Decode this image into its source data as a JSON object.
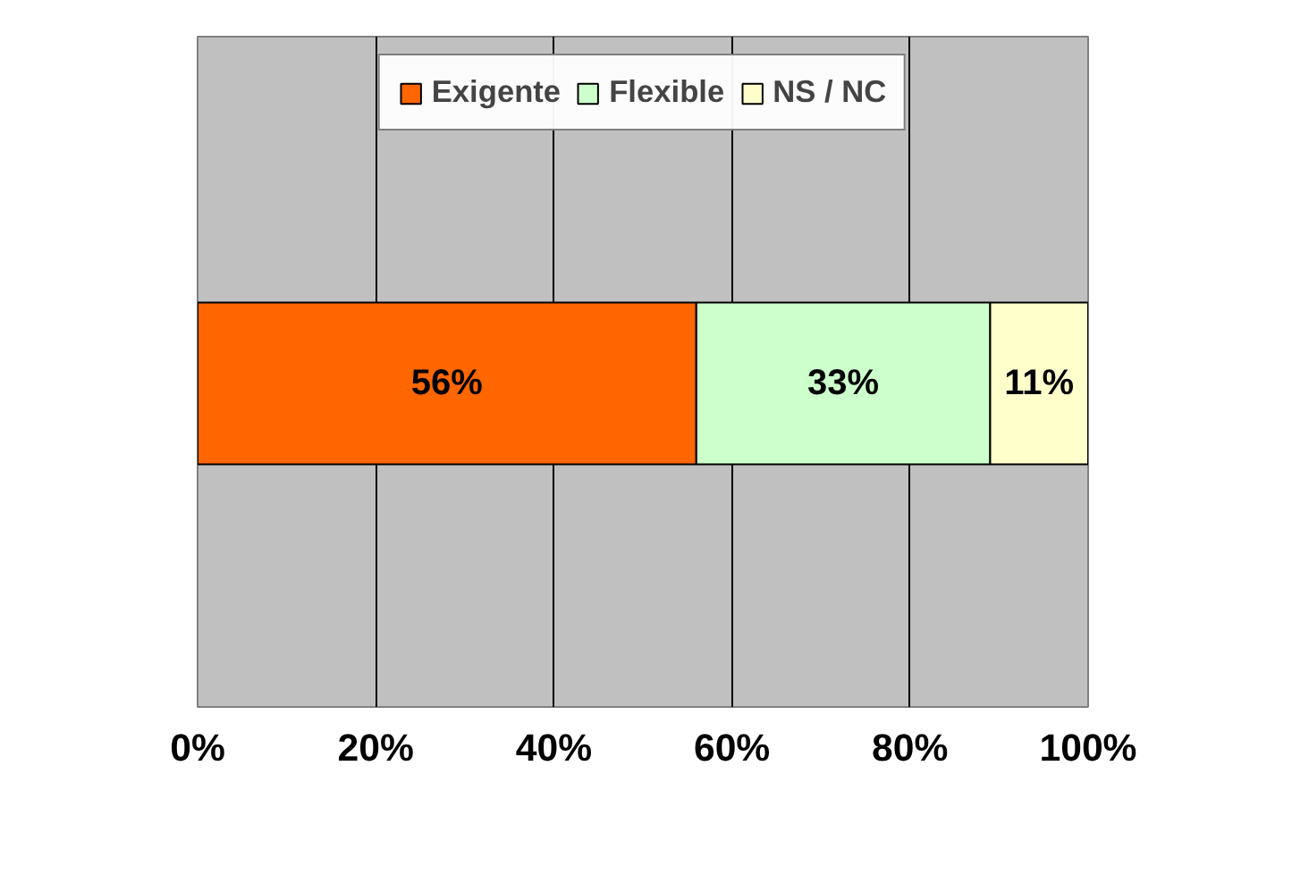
{
  "chart_data": {
    "type": "bar",
    "orientation": "horizontal",
    "stacked": true,
    "categories": [
      null
    ],
    "series": [
      {
        "name": "Exigente",
        "color": "#ff6600",
        "values": [
          56
        ]
      },
      {
        "name": "Flexible",
        "color": "#ccffcc",
        "values": [
          33
        ]
      },
      {
        "name": "NS / NC",
        "color": "#ffffcc",
        "values": [
          11
        ]
      }
    ],
    "xlim": [
      0,
      100
    ],
    "xticks": [
      {
        "value": 0,
        "label": "0%"
      },
      {
        "value": 20,
        "label": "20%"
      },
      {
        "value": 40,
        "label": "40%"
      },
      {
        "value": 60,
        "label": "60%"
      },
      {
        "value": 80,
        "label": "80%"
      },
      {
        "value": 100,
        "label": "100%"
      }
    ],
    "value_labels": [
      [
        "56%"
      ],
      [
        "33%"
      ],
      [
        "11%"
      ]
    ],
    "grid": "x",
    "legend": "top",
    "tick_labels": "x"
  }
}
